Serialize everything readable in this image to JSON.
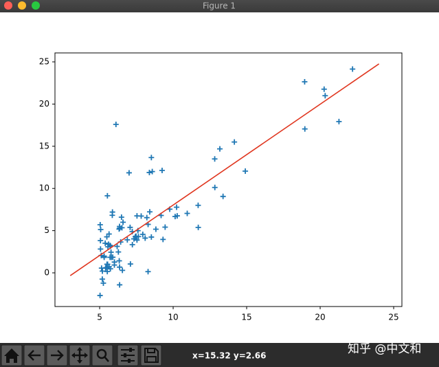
{
  "window": {
    "title": "Figure 1"
  },
  "status": "x=15.32 y=2.66",
  "watermark": "知乎 @中文和",
  "chart_data": {
    "type": "scatter",
    "xlim": [
      1.96,
      25.56
    ],
    "ylim": [
      -3.99,
      26.06
    ],
    "xticks": [
      5,
      10,
      15,
      20,
      25
    ],
    "yticks": [
      0,
      5,
      10,
      15,
      20,
      25
    ],
    "scatter": {
      "color": "#1f77b4",
      "x": [
        6.1101,
        5.5277,
        8.5186,
        7.0032,
        5.8598,
        8.3829,
        7.4764,
        8.5781,
        6.4862,
        5.0546,
        5.7107,
        14.164,
        5.734,
        8.4084,
        5.6407,
        5.3794,
        6.3654,
        5.1301,
        6.4296,
        7.0708,
        6.1891,
        20.27,
        5.4901,
        6.3261,
        5.5649,
        18.945,
        12.828,
        10.957,
        13.176,
        22.203,
        5.2524,
        6.5894,
        9.2482,
        5.8918,
        8.2111,
        7.9334,
        8.0959,
        5.6063,
        12.836,
        6.3534,
        5.4069,
        6.8825,
        11.708,
        5.7737,
        7.8247,
        7.0931,
        5.0702,
        5.8014,
        11.7,
        5.5416,
        7.5402,
        5.3077,
        7.4239,
        7.6031,
        6.3328,
        6.3589,
        6.2742,
        5.6397,
        9.3102,
        9.4536,
        8.8254,
        5.1793,
        21.279,
        14.908,
        18.959,
        7.2182,
        8.2951,
        10.236,
        5.4994,
        20.341,
        10.136,
        7.3345,
        6.0062,
        7.2259,
        5.0269,
        6.5479,
        7.5386,
        5.0365,
        10.274,
        5.1077,
        5.7292,
        5.1884,
        6.3557,
        9.7687,
        6.5159,
        8.5172,
        9.1802,
        6.002,
        5.5204,
        5.0594,
        5.7077,
        7.6366,
        5.8707,
        5.3054,
        8.2934,
        13.394,
        5.4369
      ],
      "values": [
        17.592,
        9.1302,
        13.662,
        11.854,
        6.8233,
        11.886,
        4.3483,
        12,
        6.5987,
        3.8166,
        3.2522,
        15.505,
        3.1551,
        7.2258,
        0.71618,
        3.5129,
        5.3048,
        0.56077,
        3.6518,
        5.3893,
        3.1386,
        21.767,
        4.263,
        5.1875,
        3.0825,
        22.638,
        13.501,
        7.0467,
        14.692,
        24.147,
        -1.22,
        5.9966,
        12.134,
        1.8495,
        6.5426,
        4.5623,
        4.1164,
        3.3928,
        10.117,
        5.4974,
        0.55657,
        3.9115,
        5.3854,
        2.4406,
        6.7318,
        1.0463,
        5.1337,
        1.844,
        8.0043,
        1.0179,
        6.7504,
        1.8396,
        4.2885,
        4.9981,
        1.4233,
        -1.4211,
        2.4756,
        4.6042,
        3.9624,
        5.4141,
        5.1694,
        -0.74279,
        17.929,
        12.054,
        17.054,
        4.8852,
        5.7442,
        7.7754,
        1.0173,
        20.992,
        6.6799,
        4.0259,
        1.2784,
        3.3411,
        -2.6807,
        0.29678,
        3.8845,
        5.7014,
        6.7526,
        2.0576,
        0.47953,
        0.20421,
        0.67861,
        7.5435,
        5.3436,
        4.2415,
        6.7981,
        0.92695,
        0.152,
        2.8214,
        1.8451,
        4.2959,
        7.2029,
        1.9869,
        0.14454,
        9.0551,
        0.61705
      ]
    },
    "line": {
      "color": "#e0361f",
      "x": [
        3,
        24
      ],
      "values": [
        -0.33,
        24.76
      ]
    }
  }
}
